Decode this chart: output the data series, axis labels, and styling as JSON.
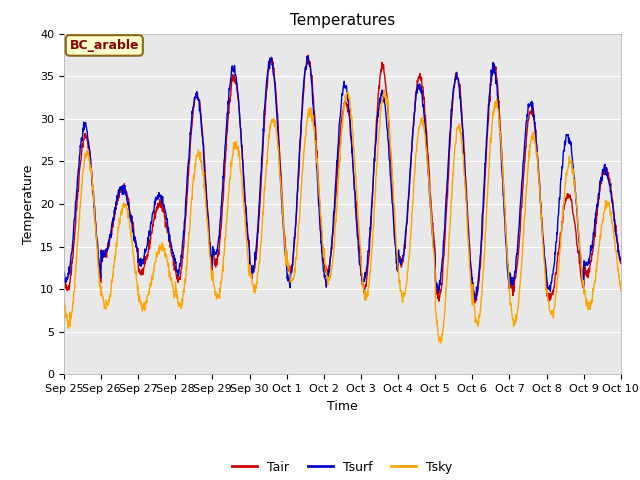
{
  "title": "Temperatures",
  "xlabel": "Time",
  "ylabel": "Temperature",
  "ylim": [
    0,
    40
  ],
  "background_color": "#e8e8e8",
  "annotation_text": "BC_arable",
  "annotation_bbox_facecolor": "#ffffcc",
  "annotation_bbox_edgecolor": "#8b6914",
  "tair_color": "#cc0000",
  "tsurf_color": "#0000cc",
  "tsky_color": "#ffa500",
  "linewidth": 1.0,
  "xtick_labels": [
    "Sep 25",
    "Sep 26",
    "Sep 27",
    "Sep 28",
    "Sep 29",
    "Sep 30",
    "Oct 1",
    "Oct 2",
    "Oct 3",
    "Oct 4",
    "Oct 5",
    "Oct 6",
    "Oct 7",
    "Oct 8",
    "Oct 9",
    "Oct 10"
  ],
  "legend_entries": [
    "Tair",
    "Tsurf",
    "Tsky"
  ],
  "title_fontsize": 11,
  "tick_fontsize": 8,
  "label_fontsize": 9,
  "annotation_fontsize": 9
}
